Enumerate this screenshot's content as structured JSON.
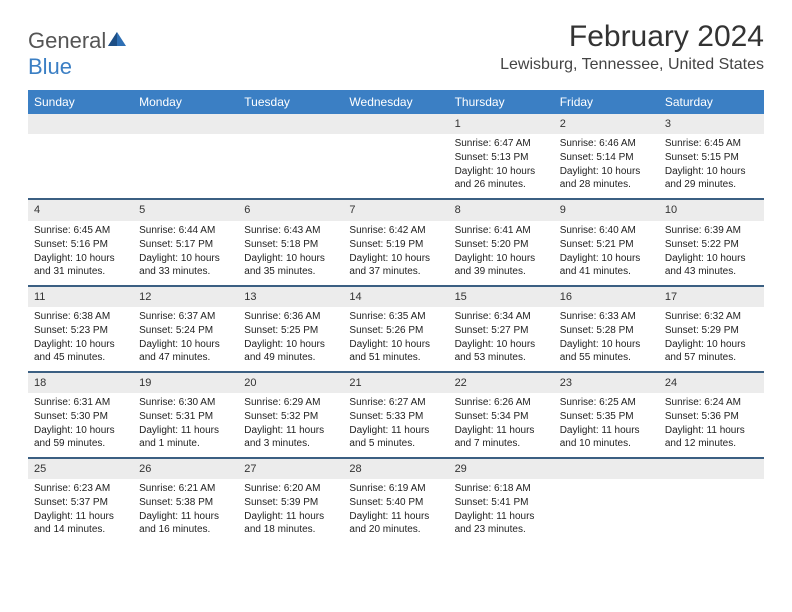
{
  "logo": {
    "text_general": "General",
    "text_blue": "Blue"
  },
  "title": "February 2024",
  "location": "Lewisburg, Tennessee, United States",
  "colors": {
    "header_bg": "#3b7fc4",
    "week_border": "#3b5f82",
    "daynum_bg": "#ececec",
    "text": "#333333",
    "body_text": "#222222",
    "page_bg": "#ffffff"
  },
  "fonts": {
    "title_size": 30,
    "location_size": 16,
    "header_size": 12,
    "daynum_size": 11,
    "body_size": 10
  },
  "day_names": [
    "Sunday",
    "Monday",
    "Tuesday",
    "Wednesday",
    "Thursday",
    "Friday",
    "Saturday"
  ],
  "weeks": [
    [
      {
        "empty": true
      },
      {
        "empty": true
      },
      {
        "empty": true
      },
      {
        "empty": true
      },
      {
        "day": "1",
        "sunrise": "Sunrise: 6:47 AM",
        "sunset": "Sunset: 5:13 PM",
        "daylight": "Daylight: 10 hours and 26 minutes."
      },
      {
        "day": "2",
        "sunrise": "Sunrise: 6:46 AM",
        "sunset": "Sunset: 5:14 PM",
        "daylight": "Daylight: 10 hours and 28 minutes."
      },
      {
        "day": "3",
        "sunrise": "Sunrise: 6:45 AM",
        "sunset": "Sunset: 5:15 PM",
        "daylight": "Daylight: 10 hours and 29 minutes."
      }
    ],
    [
      {
        "day": "4",
        "sunrise": "Sunrise: 6:45 AM",
        "sunset": "Sunset: 5:16 PM",
        "daylight": "Daylight: 10 hours and 31 minutes."
      },
      {
        "day": "5",
        "sunrise": "Sunrise: 6:44 AM",
        "sunset": "Sunset: 5:17 PM",
        "daylight": "Daylight: 10 hours and 33 minutes."
      },
      {
        "day": "6",
        "sunrise": "Sunrise: 6:43 AM",
        "sunset": "Sunset: 5:18 PM",
        "daylight": "Daylight: 10 hours and 35 minutes."
      },
      {
        "day": "7",
        "sunrise": "Sunrise: 6:42 AM",
        "sunset": "Sunset: 5:19 PM",
        "daylight": "Daylight: 10 hours and 37 minutes."
      },
      {
        "day": "8",
        "sunrise": "Sunrise: 6:41 AM",
        "sunset": "Sunset: 5:20 PM",
        "daylight": "Daylight: 10 hours and 39 minutes."
      },
      {
        "day": "9",
        "sunrise": "Sunrise: 6:40 AM",
        "sunset": "Sunset: 5:21 PM",
        "daylight": "Daylight: 10 hours and 41 minutes."
      },
      {
        "day": "10",
        "sunrise": "Sunrise: 6:39 AM",
        "sunset": "Sunset: 5:22 PM",
        "daylight": "Daylight: 10 hours and 43 minutes."
      }
    ],
    [
      {
        "day": "11",
        "sunrise": "Sunrise: 6:38 AM",
        "sunset": "Sunset: 5:23 PM",
        "daylight": "Daylight: 10 hours and 45 minutes."
      },
      {
        "day": "12",
        "sunrise": "Sunrise: 6:37 AM",
        "sunset": "Sunset: 5:24 PM",
        "daylight": "Daylight: 10 hours and 47 minutes."
      },
      {
        "day": "13",
        "sunrise": "Sunrise: 6:36 AM",
        "sunset": "Sunset: 5:25 PM",
        "daylight": "Daylight: 10 hours and 49 minutes."
      },
      {
        "day": "14",
        "sunrise": "Sunrise: 6:35 AM",
        "sunset": "Sunset: 5:26 PM",
        "daylight": "Daylight: 10 hours and 51 minutes."
      },
      {
        "day": "15",
        "sunrise": "Sunrise: 6:34 AM",
        "sunset": "Sunset: 5:27 PM",
        "daylight": "Daylight: 10 hours and 53 minutes."
      },
      {
        "day": "16",
        "sunrise": "Sunrise: 6:33 AM",
        "sunset": "Sunset: 5:28 PM",
        "daylight": "Daylight: 10 hours and 55 minutes."
      },
      {
        "day": "17",
        "sunrise": "Sunrise: 6:32 AM",
        "sunset": "Sunset: 5:29 PM",
        "daylight": "Daylight: 10 hours and 57 minutes."
      }
    ],
    [
      {
        "day": "18",
        "sunrise": "Sunrise: 6:31 AM",
        "sunset": "Sunset: 5:30 PM",
        "daylight": "Daylight: 10 hours and 59 minutes."
      },
      {
        "day": "19",
        "sunrise": "Sunrise: 6:30 AM",
        "sunset": "Sunset: 5:31 PM",
        "daylight": "Daylight: 11 hours and 1 minute."
      },
      {
        "day": "20",
        "sunrise": "Sunrise: 6:29 AM",
        "sunset": "Sunset: 5:32 PM",
        "daylight": "Daylight: 11 hours and 3 minutes."
      },
      {
        "day": "21",
        "sunrise": "Sunrise: 6:27 AM",
        "sunset": "Sunset: 5:33 PM",
        "daylight": "Daylight: 11 hours and 5 minutes."
      },
      {
        "day": "22",
        "sunrise": "Sunrise: 6:26 AM",
        "sunset": "Sunset: 5:34 PM",
        "daylight": "Daylight: 11 hours and 7 minutes."
      },
      {
        "day": "23",
        "sunrise": "Sunrise: 6:25 AM",
        "sunset": "Sunset: 5:35 PM",
        "daylight": "Daylight: 11 hours and 10 minutes."
      },
      {
        "day": "24",
        "sunrise": "Sunrise: 6:24 AM",
        "sunset": "Sunset: 5:36 PM",
        "daylight": "Daylight: 11 hours and 12 minutes."
      }
    ],
    [
      {
        "day": "25",
        "sunrise": "Sunrise: 6:23 AM",
        "sunset": "Sunset: 5:37 PM",
        "daylight": "Daylight: 11 hours and 14 minutes."
      },
      {
        "day": "26",
        "sunrise": "Sunrise: 6:21 AM",
        "sunset": "Sunset: 5:38 PM",
        "daylight": "Daylight: 11 hours and 16 minutes."
      },
      {
        "day": "27",
        "sunrise": "Sunrise: 6:20 AM",
        "sunset": "Sunset: 5:39 PM",
        "daylight": "Daylight: 11 hours and 18 minutes."
      },
      {
        "day": "28",
        "sunrise": "Sunrise: 6:19 AM",
        "sunset": "Sunset: 5:40 PM",
        "daylight": "Daylight: 11 hours and 20 minutes."
      },
      {
        "day": "29",
        "sunrise": "Sunrise: 6:18 AM",
        "sunset": "Sunset: 5:41 PM",
        "daylight": "Daylight: 11 hours and 23 minutes."
      },
      {
        "empty": true
      },
      {
        "empty": true
      }
    ]
  ]
}
